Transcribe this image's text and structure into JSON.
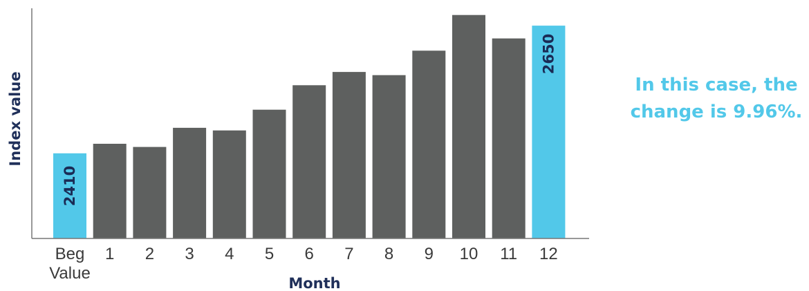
{
  "chart_data": {
    "type": "bar",
    "categories": [
      [
        "Beg",
        "Value"
      ],
      [
        "1"
      ],
      [
        "2"
      ],
      [
        "3"
      ],
      [
        "4"
      ],
      [
        "5"
      ],
      [
        "6"
      ],
      [
        "7"
      ],
      [
        "8"
      ],
      [
        "9"
      ],
      [
        "10"
      ],
      [
        "11"
      ],
      [
        "12"
      ]
    ],
    "values": [
      2410,
      2428,
      2422,
      2458,
      2453,
      2492,
      2538,
      2563,
      2557,
      2603,
      2670,
      2626,
      2650
    ],
    "highlighted": [
      0,
      12
    ],
    "data_labels": {
      "0": "2410",
      "12": "2650"
    },
    "xlabel": "Month",
    "ylabel": "Index value",
    "ylim": [
      2250,
      2680
    ],
    "grid": false,
    "legend": "none"
  },
  "annotation": {
    "lines": [
      "In this case, the",
      "change is 9.96%."
    ]
  },
  "colors": {
    "bar": "#5e605f",
    "highlight": "#52c8e9",
    "axis_title": "#20305a",
    "data_label": "#1a2b55",
    "annotation": "#52c8e9",
    "axis_line": "#777777"
  }
}
